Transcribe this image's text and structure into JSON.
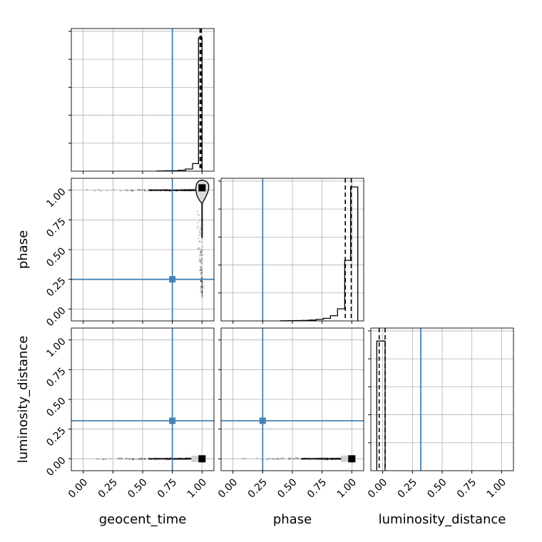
{
  "chart_data": {
    "type": "corner",
    "parameters": [
      "geocent_time",
      "phase",
      "luminosity_distance"
    ],
    "axis_range": [
      -0.1,
      1.1
    ],
    "tick_values": [
      0.0,
      0.25,
      0.5,
      0.75,
      1.0
    ],
    "tick_labels": [
      "0.00",
      "0.25",
      "0.50",
      "0.75",
      "1.00"
    ],
    "grid": true,
    "truths": {
      "geocent_time": 0.75,
      "phase": 0.25,
      "luminosity_distance": 0.32
    },
    "truth_color": "#4682b4",
    "histograms": {
      "geocent_time": {
        "edges": [
          0.62,
          0.68,
          0.74,
          0.8,
          0.86,
          0.92,
          0.97,
          1.0
        ],
        "counts": [
          0.5,
          1.0,
          1.5,
          3.0,
          7.0,
          25.0,
          440.0
        ],
        "ymax": 470,
        "quantiles": [
          0.983,
          0.993
        ]
      },
      "phase": {
        "edges": [
          0.4,
          0.46,
          0.52,
          0.58,
          0.64,
          0.7,
          0.76,
          0.82,
          0.88,
          0.94,
          0.99,
          1.05
        ],
        "counts": [
          0.3,
          0.5,
          0.8,
          1.2,
          2.0,
          3.5,
          6.0,
          12.0,
          28.0,
          140.0,
          310.0
        ],
        "ymax": 330,
        "quantiles": [
          0.945,
          0.995
        ]
      },
      "luminosity_distance": {
        "edges": [
          -0.05,
          0.02
        ],
        "counts": [
          100.0
        ],
        "ymax": 110,
        "quantiles": [
          -0.03,
          0.02
        ]
      }
    },
    "joint": {
      "phase_vs_geocent_time": {
        "streak_horizontal": {
          "y": 1.0,
          "x_from": 0.0,
          "x_to": 1.0
        },
        "streak_vertical": {
          "x": 1.0,
          "y_from": 0.1,
          "y_to": 1.0
        },
        "mode": [
          1.0,
          1.02
        ]
      },
      "luminosity_distance_vs_geocent_time": {
        "streak_horizontal": {
          "y": 0.0,
          "x_from": 0.0,
          "x_to": 1.0
        },
        "mode": [
          1.0,
          0.0
        ]
      },
      "luminosity_distance_vs_phase": {
        "streak_horizontal": {
          "y": 0.0,
          "x_from": 0.05,
          "x_to": 1.0
        },
        "mode": [
          1.0,
          0.0
        ]
      }
    }
  }
}
